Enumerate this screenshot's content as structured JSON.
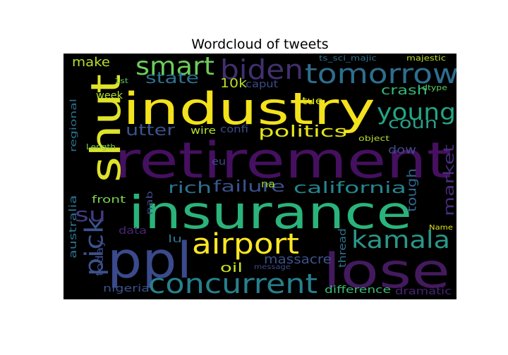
{
  "chart_data": {
    "type": "wordcloud",
    "title": "Wordcloud of tweets",
    "background": "#000000",
    "colormap": "viridis",
    "words": [
      {
        "text": "retirement",
        "weight": 1.0,
        "color": "#45105f",
        "orientation": "horizontal"
      },
      {
        "text": "insurance",
        "weight": 0.95,
        "color": "#2ab37a",
        "orientation": "horizontal"
      },
      {
        "text": "industry",
        "weight": 0.9,
        "color": "#f4e21c",
        "orientation": "horizontal"
      },
      {
        "text": "lose",
        "weight": 0.88,
        "color": "#441a5e",
        "orientation": "horizontal"
      },
      {
        "text": "ppl",
        "weight": 0.86,
        "color": "#3a4a8c",
        "orientation": "horizontal"
      },
      {
        "text": "shut",
        "weight": 0.78,
        "color": "#dfe32a",
        "orientation": "vertical"
      },
      {
        "text": "tomorrow",
        "weight": 0.58,
        "color": "#2e6e8e",
        "orientation": "horizontal"
      },
      {
        "text": "airport",
        "weight": 0.58,
        "color": "#fde725",
        "orientation": "horizontal"
      },
      {
        "text": "biden",
        "weight": 0.55,
        "color": "#41306e",
        "orientation": "horizontal"
      },
      {
        "text": "concurrent",
        "weight": 0.55,
        "color": "#27808e",
        "orientation": "horizontal"
      },
      {
        "text": "kamala",
        "weight": 0.52,
        "color": "#2a9789",
        "orientation": "horizontal"
      },
      {
        "text": "smart",
        "weight": 0.5,
        "color": "#6dcd59",
        "orientation": "horizontal"
      },
      {
        "text": "young",
        "weight": 0.48,
        "color": "#21a585",
        "orientation": "horizontal"
      },
      {
        "text": "pick",
        "weight": 0.45,
        "color": "#3b528b",
        "orientation": "vertical"
      },
      {
        "text": "california",
        "weight": 0.38,
        "color": "#25858e",
        "orientation": "horizontal"
      },
      {
        "text": "failure",
        "weight": 0.36,
        "color": "#3b528b",
        "orientation": "horizontal"
      },
      {
        "text": "politics",
        "weight": 0.36,
        "color": "#e5e419",
        "orientation": "horizontal"
      },
      {
        "text": "rich",
        "weight": 0.36,
        "color": "#2c728e",
        "orientation": "horizontal"
      },
      {
        "text": "state",
        "weight": 0.35,
        "color": "#2c728e",
        "orientation": "horizontal"
      },
      {
        "text": "utter",
        "weight": 0.34,
        "color": "#3b528b",
        "orientation": "horizontal"
      },
      {
        "text": "su",
        "weight": 0.34,
        "color": "#443983",
        "orientation": "horizontal"
      },
      {
        "text": "coun",
        "weight": 0.34,
        "color": "#2a9d8a",
        "orientation": "horizontal"
      },
      {
        "text": "market",
        "weight": 0.33,
        "color": "#472d7b",
        "orientation": "vertical"
      },
      {
        "text": "massacre",
        "weight": 0.3,
        "color": "#3b528b",
        "orientation": "horizontal"
      },
      {
        "text": "oil",
        "weight": 0.3,
        "color": "#cde11d",
        "orientation": "horizontal"
      },
      {
        "text": "make",
        "weight": 0.28,
        "color": "#b5de2b",
        "orientation": "horizontal"
      },
      {
        "text": "crash",
        "weight": 0.28,
        "color": "#35b779",
        "orientation": "horizontal"
      },
      {
        "text": "tough",
        "weight": 0.28,
        "color": "#31688e",
        "orientation": "vertical"
      },
      {
        "text": "10k",
        "weight": 0.27,
        "color": "#b5de2b",
        "orientation": "horizontal"
      },
      {
        "text": "dow",
        "weight": 0.26,
        "color": "#3e4a89",
        "orientation": "horizontal"
      },
      {
        "text": "difference",
        "weight": 0.24,
        "color": "#3bbb75",
        "orientation": "horizontal"
      },
      {
        "text": "thread",
        "weight": 0.23,
        "color": "#2c728e",
        "orientation": "vertical"
      },
      {
        "text": "nigeria",
        "weight": 0.23,
        "color": "#3b528b",
        "orientation": "horizontal"
      },
      {
        "text": "dramatic",
        "weight": 0.22,
        "color": "#482475",
        "orientation": "horizontal"
      },
      {
        "text": "front",
        "weight": 0.22,
        "color": "#7ad151",
        "orientation": "horizontal"
      },
      {
        "text": "australia",
        "weight": 0.21,
        "color": "#2c728e",
        "orientation": "vertical"
      },
      {
        "text": "today",
        "weight": 0.2,
        "color": "#3e4a89",
        "orientation": "vertical"
      },
      {
        "text": "data",
        "weight": 0.2,
        "color": "#482475",
        "orientation": "horizontal"
      },
      {
        "text": "week",
        "weight": 0.2,
        "color": "#b5de2b",
        "orientation": "horizontal"
      },
      {
        "text": "wire",
        "weight": 0.2,
        "color": "#b5de2b",
        "orientation": "horizontal"
      },
      {
        "text": "tue",
        "weight": 0.2,
        "color": "#dde318",
        "orientation": "horizontal"
      },
      {
        "text": "caput",
        "weight": 0.19,
        "color": "#3e4a89",
        "orientation": "horizontal"
      },
      {
        "text": "regional",
        "weight": 0.17,
        "color": "#2c728e",
        "orientation": "vertical"
      },
      {
        "text": "nab",
        "weight": 0.17,
        "color": "#3e4a89",
        "orientation": "vertical"
      },
      {
        "text": "lu",
        "weight": 0.17,
        "color": "#2c728e",
        "orientation": "horizontal"
      },
      {
        "text": "eu",
        "weight": 0.17,
        "color": "#3e4a89",
        "orientation": "horizontal"
      },
      {
        "text": "na",
        "weight": 0.17,
        "color": "#a2da37",
        "orientation": "horizontal"
      },
      {
        "text": "confi",
        "weight": 0.17,
        "color": "#3e4a89",
        "orientation": "horizontal"
      },
      {
        "text": "ts_sci_majic",
        "weight": 0.14,
        "color": "#2c728e",
        "orientation": "horizontal"
      },
      {
        "text": "majestic",
        "weight": 0.14,
        "color": "#b5de2b",
        "orientation": "horizontal"
      },
      {
        "text": "dtype",
        "weight": 0.14,
        "color": "#5ec962",
        "orientation": "horizontal"
      },
      {
        "text": "object",
        "weight": 0.14,
        "color": "#b5de2b",
        "orientation": "horizontal"
      },
      {
        "text": "Length",
        "weight": 0.13,
        "color": "#7ad151",
        "orientation": "horizontal"
      },
      {
        "text": "message",
        "weight": 0.13,
        "color": "#3e4a89",
        "orientation": "horizontal"
      },
      {
        "text": "Name",
        "weight": 0.13,
        "color": "#dde318",
        "orientation": "horizontal"
      },
      {
        "text": "1st",
        "weight": 0.12,
        "color": "#5ec962",
        "orientation": "horizontal"
      }
    ]
  }
}
